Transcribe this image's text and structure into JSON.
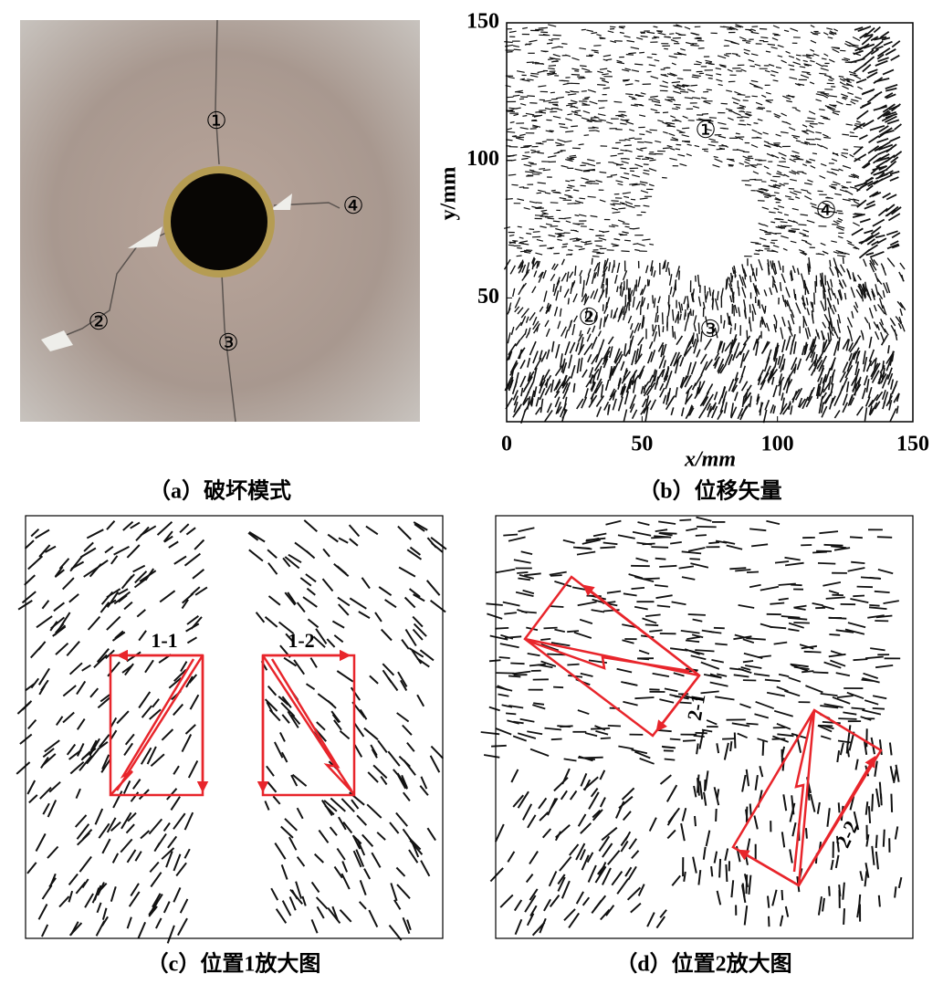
{
  "panels": {
    "a": {
      "caption": "（a）破坏模式",
      "labels": [
        "①",
        "②",
        "③",
        "④"
      ]
    },
    "b": {
      "caption": "（b）位移矢量",
      "labels": [
        "①",
        "②",
        "③",
        "④"
      ],
      "xlabel": "x/mm",
      "ylabel": "y/mm",
      "xlim": [
        0,
        150
      ],
      "ylim": [
        5,
        150
      ],
      "xticks": [
        0,
        50,
        100,
        150
      ],
      "yticks": [
        50,
        100,
        150
      ]
    },
    "c": {
      "caption": "（c）位置1放大图",
      "labels": [
        "1-1",
        "1-2"
      ]
    },
    "d": {
      "caption": "（d）位置2放大图",
      "labels": [
        "2-1",
        "2-2"
      ]
    }
  }
}
